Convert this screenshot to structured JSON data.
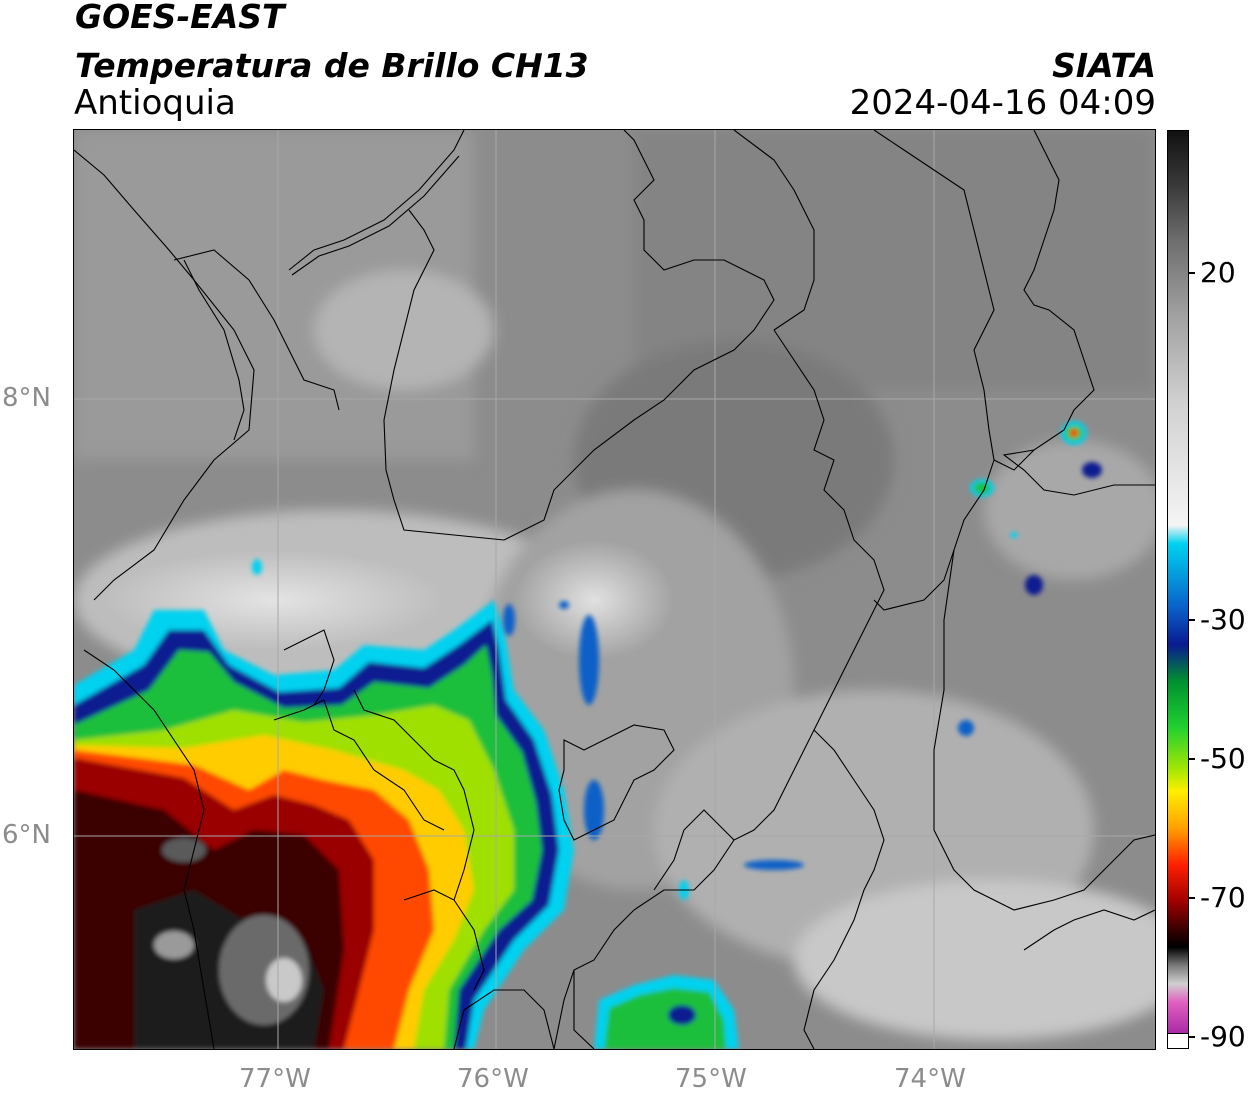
{
  "header": {
    "satellite": "GOES-EAST",
    "product": "Temperatura de Brillo CH13",
    "region": "Antioquia",
    "organization": "SIATA",
    "datetime": "2024-04-16 04:09"
  },
  "map": {
    "lat_labels": [
      "8°N",
      "6°N"
    ],
    "lon_labels": [
      "77°W",
      "76°W",
      "75°W",
      "74°W"
    ],
    "gridline_color": "#a8a8a8",
    "border_color": "#000000"
  },
  "colorbar": {
    "tick_labels": [
      "20",
      "-30",
      "-50",
      "-70",
      "-90"
    ],
    "stops": [
      "#111111",
      "#3a3a3a",
      "#6e6e6e",
      "#a0a0a0",
      "#d2d2d2",
      "#f4f4f4",
      "#00d2f0",
      "#0a60c8",
      "#0a1a90",
      "#009030",
      "#20d030",
      "#b0e800",
      "#ffee00",
      "#ffa000",
      "#ff2000",
      "#a00000",
      "#3a0000",
      "#000000",
      "#7a7a7a",
      "#d0d0d0",
      "#e060c0",
      "#a020a0"
    ]
  }
}
